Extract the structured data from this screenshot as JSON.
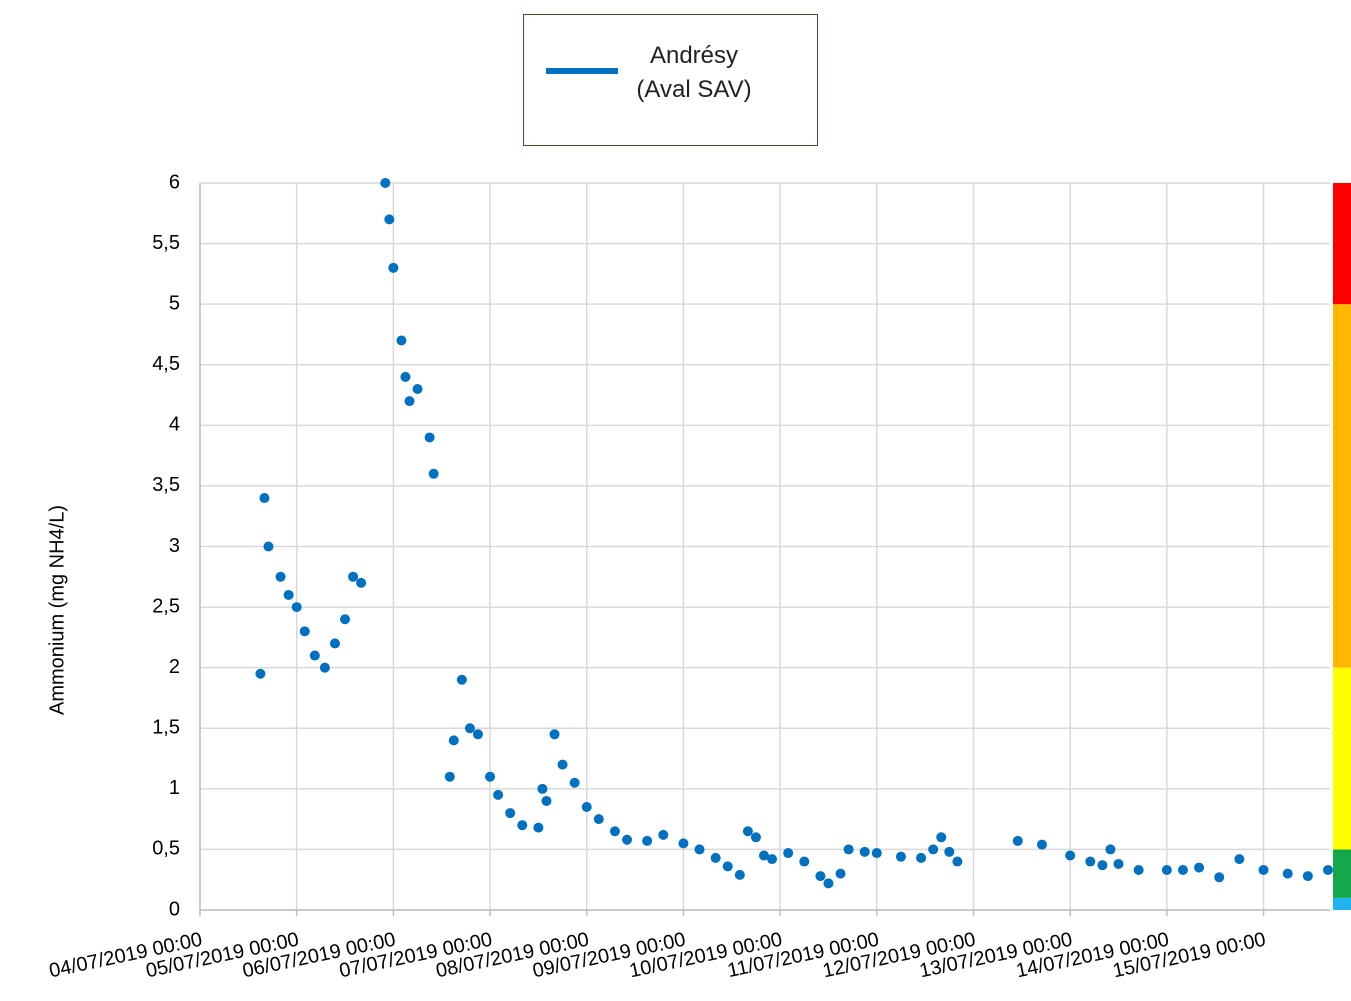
{
  "chart_data": {
    "type": "scatter",
    "y_label": "Ammonium (mg NH4/L)",
    "xlim": [
      "04/07/2019 00:00",
      "15/07/2019 16:30"
    ],
    "xticks": [
      "04/07/2019 00:00",
      "05/07/2019 00:00",
      "06/07/2019 00:00",
      "07/07/2019 00:00",
      "08/07/2019 00:00",
      "09/07/2019 00:00",
      "10/07/2019 00:00",
      "11/07/2019 00:00",
      "12/07/2019 00:00",
      "13/07/2019 00:00",
      "14/07/2019 00:00",
      "15/07/2019 00:00"
    ],
    "ylim": [
      0,
      6
    ],
    "yticks": [
      0,
      {
        "value": 0.5,
        "label": "0,5"
      },
      1,
      {
        "value": 1.5,
        "label": "1,5"
      },
      2,
      {
        "value": 2.5,
        "label": "2,5"
      },
      3,
      {
        "value": 3.5,
        "label": "3,5"
      },
      4,
      {
        "value": 4.5,
        "label": "4,5"
      },
      5,
      {
        "value": 5.5,
        "label": "5,5"
      },
      6
    ],
    "grid": true,
    "series": [
      {
        "name": "Andrésy (Aval SAV)",
        "color": "#0070c0",
        "x": [
          "04/07/2019 15:00",
          "04/07/2019 16:00",
          "04/07/2019 17:00",
          "04/07/2019 20:00",
          "04/07/2019 22:00",
          "05/07/2019 00:00",
          "05/07/2019 02:00",
          "05/07/2019 04:30",
          "05/07/2019 07:00",
          "05/07/2019 09:30",
          "05/07/2019 12:00",
          "05/07/2019 14:00",
          "05/07/2019 16:00",
          "05/07/2019 22:00",
          "05/07/2019 23:00",
          "06/07/2019 00:00",
          "06/07/2019 02:00",
          "06/07/2019 03:00",
          "06/07/2019 04:00",
          "06/07/2019 06:00",
          "06/07/2019 09:00",
          "06/07/2019 10:00",
          "06/07/2019 14:00",
          "06/07/2019 15:00",
          "06/07/2019 17:00",
          "06/07/2019 19:00",
          "06/07/2019 21:00",
          "07/07/2019 00:00",
          "07/07/2019 02:00",
          "07/07/2019 05:00",
          "07/07/2019 08:00",
          "07/07/2019 12:00",
          "07/07/2019 13:00",
          "07/07/2019 14:00",
          "07/07/2019 16:00",
          "07/07/2019 18:00",
          "07/07/2019 21:00",
          "08/07/2019 00:00",
          "08/07/2019 03:00",
          "08/07/2019 07:00",
          "08/07/2019 10:00",
          "08/07/2019 15:00",
          "08/07/2019 19:00",
          "09/07/2019 00:00",
          "09/07/2019 04:00",
          "09/07/2019 08:00",
          "09/07/2019 11:00",
          "09/07/2019 14:00",
          "09/07/2019 16:00",
          "09/07/2019 18:00",
          "09/07/2019 20:00",
          "09/07/2019 22:00",
          "10/07/2019 02:00",
          "10/07/2019 06:00",
          "10/07/2019 10:00",
          "10/07/2019 12:00",
          "10/07/2019 15:00",
          "10/07/2019 17:00",
          "10/07/2019 21:00",
          "11/07/2019 00:00",
          "11/07/2019 06:00",
          "11/07/2019 11:00",
          "11/07/2019 14:00",
          "11/07/2019 16:00",
          "11/07/2019 18:00",
          "11/07/2019 20:00",
          "12/07/2019 11:00",
          "12/07/2019 17:00",
          "13/07/2019 00:00",
          "13/07/2019 05:00",
          "13/07/2019 08:00",
          "13/07/2019 10:00",
          "13/07/2019 12:00",
          "13/07/2019 17:00",
          "14/07/2019 00:00",
          "14/07/2019 04:00",
          "14/07/2019 08:00",
          "14/07/2019 13:00",
          "14/07/2019 18:00",
          "15/07/2019 00:00",
          "15/07/2019 06:00",
          "15/07/2019 11:00",
          "15/07/2019 16:00"
        ],
        "values": [
          1.95,
          3.4,
          3.0,
          2.75,
          2.6,
          2.5,
          2.3,
          2.1,
          2.0,
          2.2,
          2.4,
          2.75,
          2.7,
          6.0,
          5.7,
          5.3,
          4.7,
          4.4,
          4.2,
          4.3,
          3.9,
          3.6,
          1.1,
          1.4,
          1.9,
          1.5,
          1.45,
          1.1,
          0.95,
          0.8,
          0.7,
          0.68,
          1.0,
          0.9,
          1.45,
          1.2,
          1.05,
          0.85,
          0.75,
          0.65,
          0.58,
          0.57,
          0.62,
          0.55,
          0.5,
          0.43,
          0.36,
          0.29,
          0.65,
          0.6,
          0.45,
          0.42,
          0.47,
          0.4,
          0.28,
          0.22,
          0.3,
          0.5,
          0.48,
          0.47,
          0.44,
          0.43,
          0.5,
          0.6,
          0.48,
          0.4,
          0.57,
          0.54,
          0.45,
          0.4,
          0.37,
          0.5,
          0.38,
          0.33,
          0.33,
          0.33,
          0.35,
          0.27,
          0.42,
          0.33,
          0.3,
          0.28,
          0.33
        ]
      }
    ],
    "bands": [
      {
        "from": 0,
        "to": 0.1,
        "color": "#1fb4f0"
      },
      {
        "from": 0.1,
        "to": 0.5,
        "color": "#15a84a"
      },
      {
        "from": 0.5,
        "to": 2,
        "color": "#ffff00"
      },
      {
        "from": 2,
        "to": 5,
        "color": "#ffb800"
      },
      {
        "from": 5,
        "to": 6,
        "color": "#ff0000"
      }
    ]
  }
}
